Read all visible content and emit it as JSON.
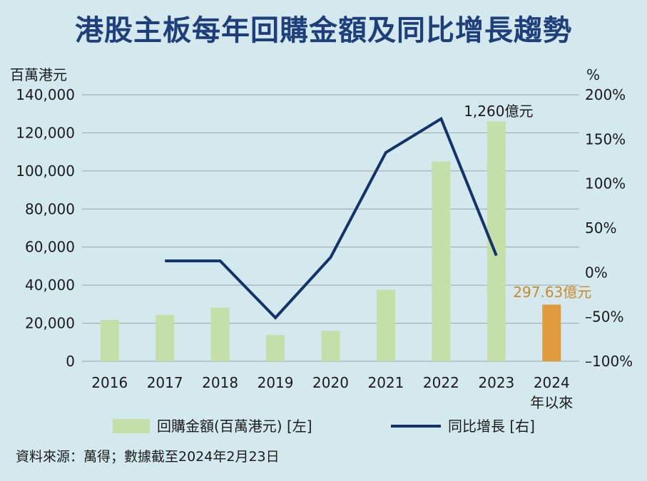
{
  "title": "港股主板每年回購金額及同比增長趨勢",
  "source": "資料來源：萬得；數據截至2024年2月23日",
  "colors": {
    "background": "#d4e9ee",
    "title": "#1f3f7a",
    "bar": "#c5dfa9",
    "bar_highlight": "#e09b3d",
    "line": "#14336b",
    "annotation_highlight": "#c98a2c"
  },
  "chart_data": {
    "type": "bar+line",
    "categories": [
      "2016",
      "2017",
      "2018",
      "2019",
      "2020",
      "2021",
      "2022",
      "2023",
      "2024\n年以來"
    ],
    "left_axis": {
      "label": "百萬港元",
      "range": [
        0,
        140000
      ],
      "ticks": [
        "0",
        "20,000",
        "40,000",
        "60,000",
        "80,000",
        "100,000",
        "120,000",
        "140,000"
      ]
    },
    "right_axis": {
      "label": "%",
      "range": [
        -100,
        200
      ],
      "ticks": [
        "–100%",
        "–50%",
        "0%",
        "50%",
        "100%",
        "150%",
        "200%"
      ]
    },
    "series": [
      {
        "name": "回購金額(百萬港元) [左]",
        "kind": "bar",
        "axis": "left",
        "values": [
          21700,
          24300,
          28200,
          13800,
          16000,
          37600,
          105000,
          126000,
          29763
        ]
      },
      {
        "name": "同比增長 [右]",
        "kind": "line",
        "axis": "right",
        "values": [
          null,
          13,
          13,
          -51,
          17,
          135,
          173,
          19,
          null
        ]
      }
    ],
    "annotations": [
      {
        "category": "2023",
        "text": "1,260億元"
      },
      {
        "category": "2024\n年以來",
        "text": "297.63億元"
      }
    ],
    "grid": true,
    "legend": "bottom"
  }
}
